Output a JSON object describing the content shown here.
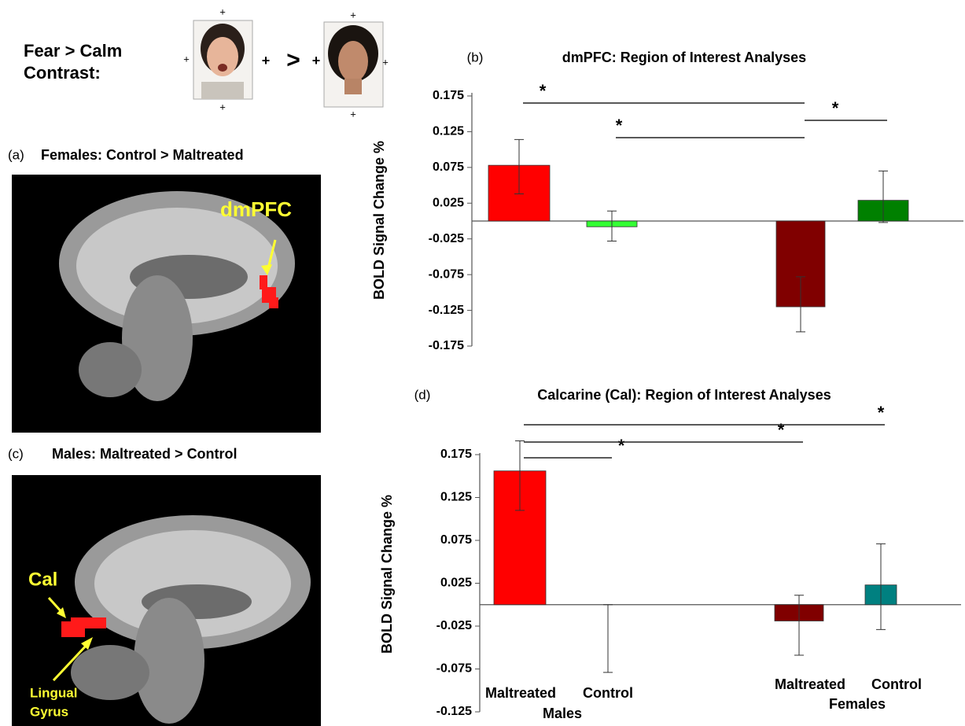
{
  "figure": {
    "stimulus": {
      "label_line1": "Fear > Calm",
      "label_line2": "Contrast:",
      "fixation": "+",
      "comparator": ">"
    },
    "panel_a": {
      "tag": "(a)",
      "title": "Females: Control > Maltreated",
      "region": "dmPFC"
    },
    "panel_c": {
      "tag": "(c)",
      "title": "Males: Maltreated > Control",
      "region": "Cal",
      "region2": [
        "Lingual",
        "Gyrus"
      ]
    }
  },
  "chart_data": [
    {
      "type": "bar",
      "tag": "(b)",
      "title": "dmPFC: Region of Interest Analyses",
      "ylabel": "BOLD Signal  Change %",
      "categories": [
        null,
        null,
        null,
        null
      ],
      "values": [
        0.078,
        -0.008,
        -0.12,
        0.029
      ],
      "errors": [
        [
          0.04,
          0.036
        ],
        [
          0.02,
          0.022
        ],
        [
          0.035,
          0.042
        ],
        [
          0.031,
          0.041
        ]
      ],
      "colors": [
        "#ff0000",
        "#33ff33",
        "#800000",
        "#008000"
      ],
      "ylim": [
        -0.175,
        0.175
      ],
      "yticks": [
        0.175,
        0.125,
        0.075,
        0.025,
        -0.025,
        -0.075,
        -0.125,
        -0.175
      ],
      "significance": [
        {
          "between": [
            0,
            2
          ],
          "label": "*"
        },
        {
          "between": [
            1,
            2
          ],
          "label": "*"
        },
        {
          "between": [
            2,
            3
          ],
          "label": "*"
        }
      ]
    },
    {
      "type": "bar",
      "tag": "(d)",
      "title": "Calcarine (Cal): Region of Interest Analyses",
      "ylabel": "BOLD Signal Change %",
      "categories": [
        "Maltreated",
        "Control",
        "Maltreated",
        "Control"
      ],
      "groups": [
        "Males",
        "Females"
      ],
      "values": [
        0.156,
        0,
        -0.019,
        0.023
      ],
      "errors": [
        [
          0.046,
          0.035
        ],
        [
          0.079,
          0
        ],
        [
          0.04,
          0.03
        ],
        [
          0.052,
          0.048
        ]
      ],
      "colors": [
        "#ff0000",
        "#ffffff",
        "#800000",
        "#008080"
      ],
      "ylim": [
        -0.125,
        0.175
      ],
      "yticks": [
        0.175,
        0.125,
        0.075,
        0.025,
        -0.025,
        -0.075,
        -0.125
      ],
      "significance": [
        {
          "between": [
            0,
            1
          ],
          "label": "*"
        },
        {
          "between": [
            0,
            2
          ],
          "label": "*"
        },
        {
          "between": [
            0,
            3
          ],
          "label": "*"
        }
      ]
    }
  ]
}
